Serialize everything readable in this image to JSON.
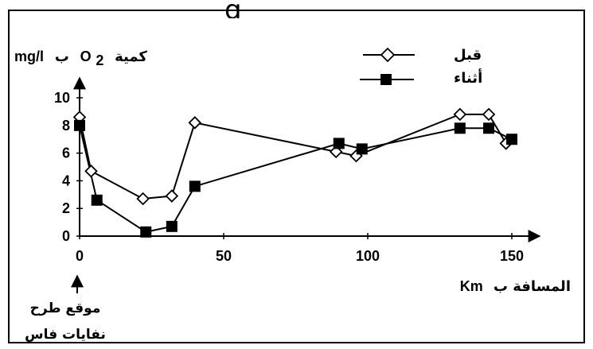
{
  "chart_data": {
    "type": "line",
    "title": "",
    "title_fragment": "g",
    "ylabel_parts": {
      "arabic_word": "كمية",
      "molecule": "O",
      "subscript": "2",
      "by": "ب",
      "unit": "mg/l"
    },
    "xlabel_parts": {
      "arabic": "المسافة ب",
      "unit": "Km"
    },
    "annotation_lines": [
      "موقع طرح",
      "نفايات فاس"
    ],
    "xlim": [
      0,
      150
    ],
    "ylim": [
      0,
      10
    ],
    "x_ticks": [
      "0",
      "50",
      "100",
      "150"
    ],
    "y_ticks": [
      "0",
      "2",
      "4",
      "6",
      "8",
      "10"
    ],
    "grid": false,
    "legend_position": "top-right",
    "series": [
      {
        "name": "قبل",
        "marker": "open-diamond",
        "color": "#000000",
        "points": [
          {
            "x": 0,
            "y": 8.6
          },
          {
            "x": 4,
            "y": 4.7
          },
          {
            "x": 22,
            "y": 2.7
          },
          {
            "x": 32,
            "y": 2.9
          },
          {
            "x": 40,
            "y": 8.2
          },
          {
            "x": 89,
            "y": 6.1
          },
          {
            "x": 96,
            "y": 5.8
          },
          {
            "x": 132,
            "y": 8.8
          },
          {
            "x": 142,
            "y": 8.8
          },
          {
            "x": 148,
            "y": 6.7
          }
        ]
      },
      {
        "name": "أثناء",
        "marker": "filled-square",
        "color": "#000000",
        "points": [
          {
            "x": 0,
            "y": 8.0
          },
          {
            "x": 6,
            "y": 2.6
          },
          {
            "x": 23,
            "y": 0.3
          },
          {
            "x": 32,
            "y": 0.7
          },
          {
            "x": 40,
            "y": 3.6
          },
          {
            "x": 90,
            "y": 6.7
          },
          {
            "x": 98,
            "y": 6.3
          },
          {
            "x": 132,
            "y": 7.8
          },
          {
            "x": 142,
            "y": 7.8
          },
          {
            "x": 150,
            "y": 7.0
          }
        ]
      }
    ]
  }
}
